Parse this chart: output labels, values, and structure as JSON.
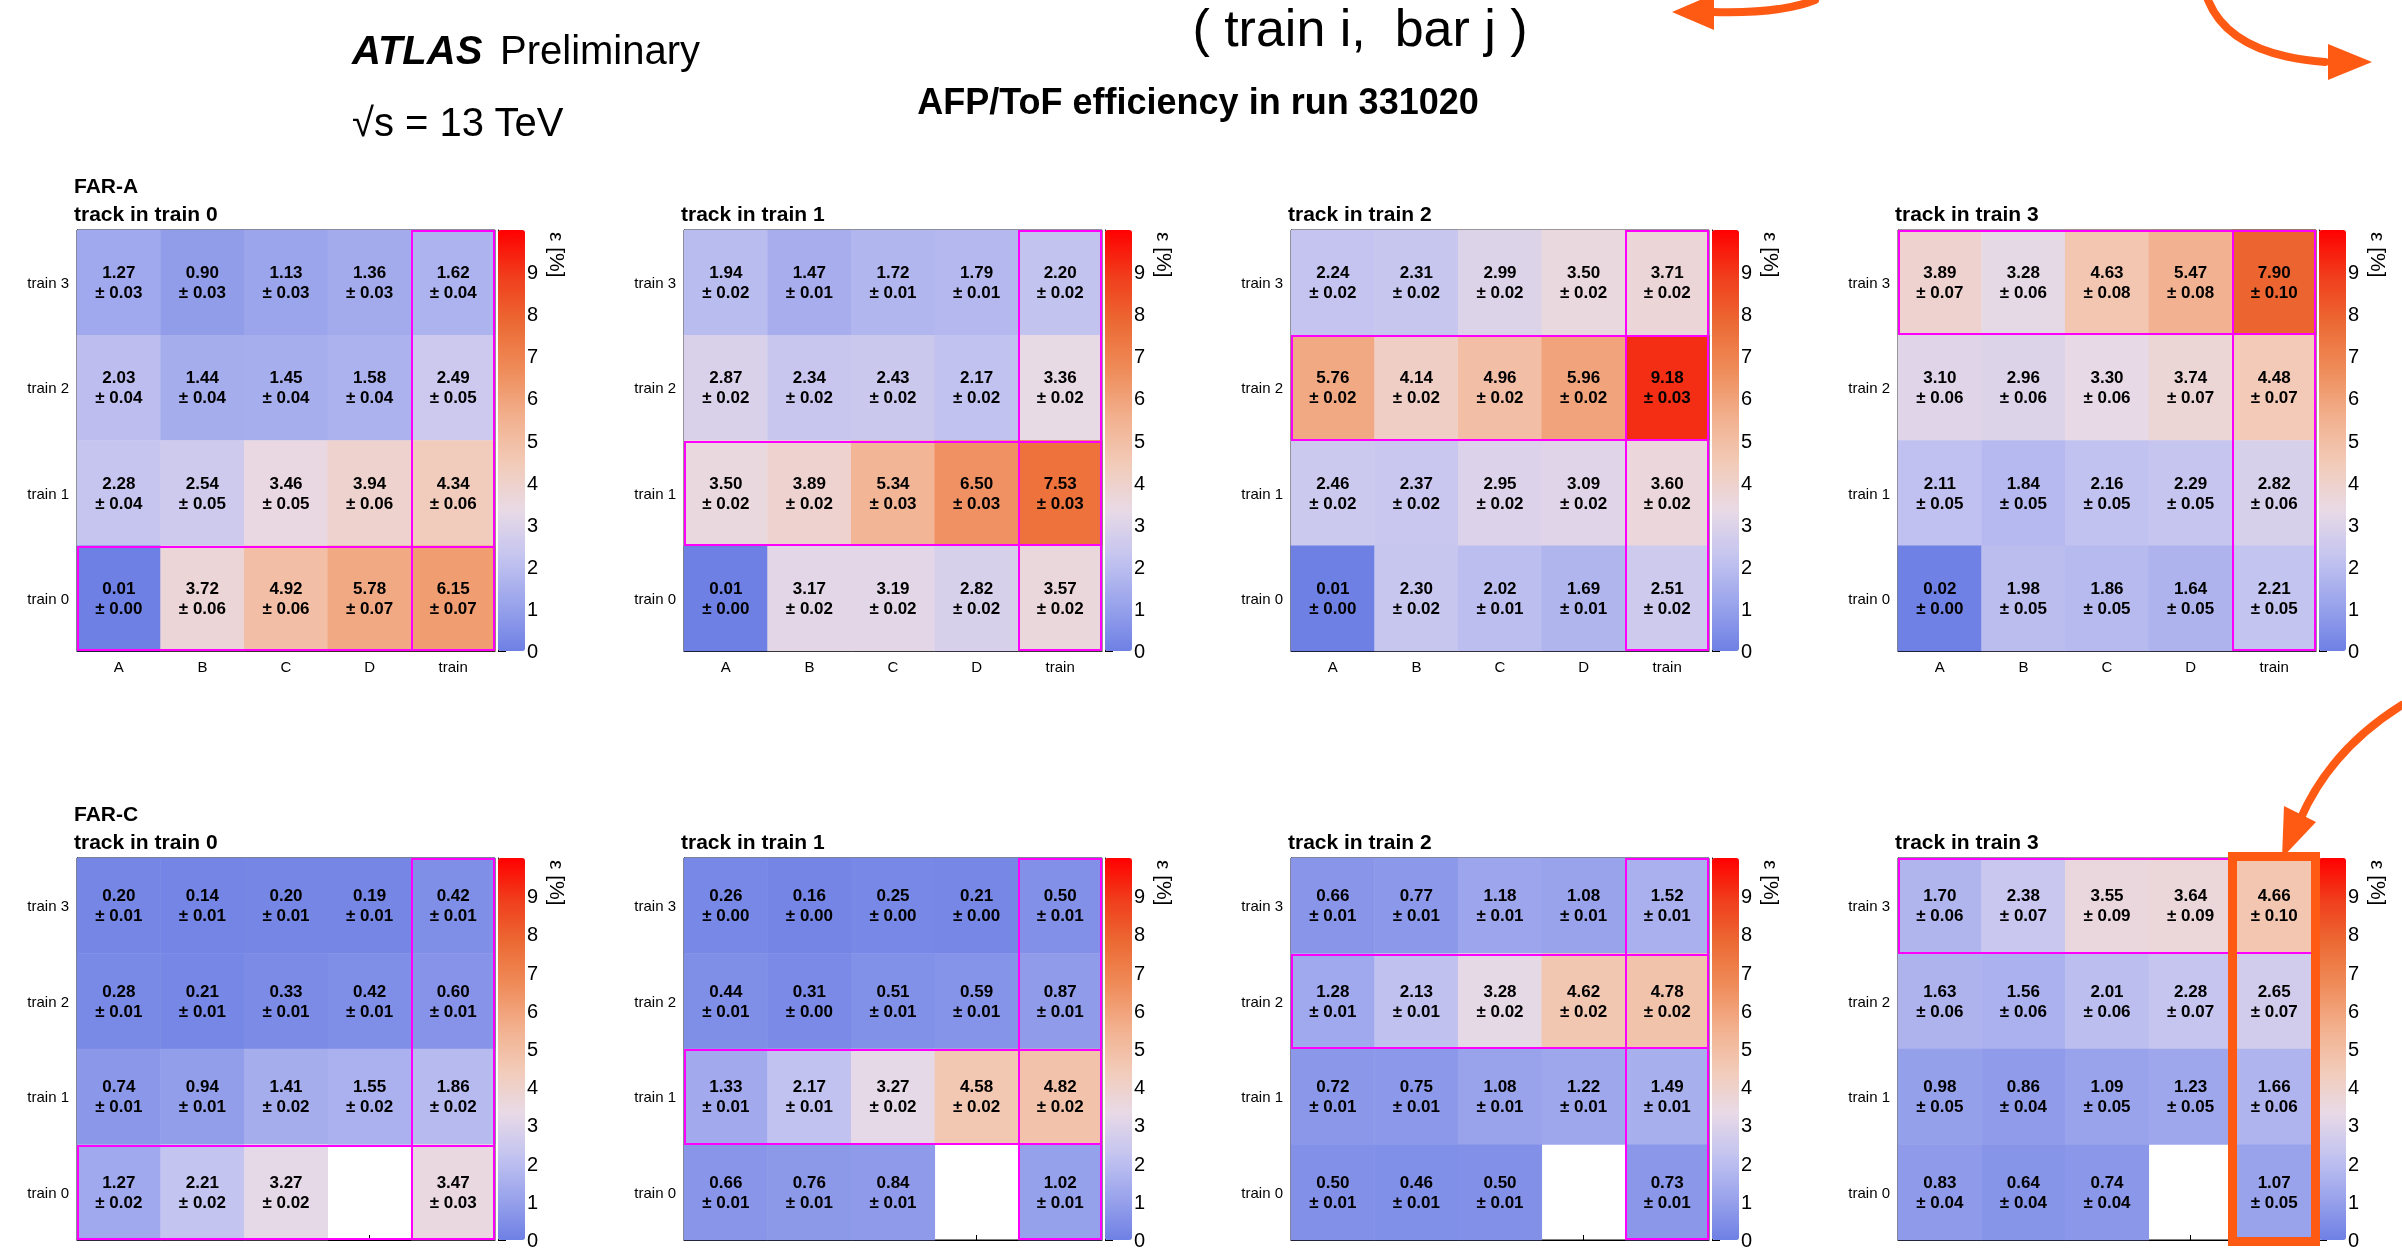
{
  "chart_data": [
    {
      "type": "heatmap",
      "title": "track in train 0",
      "annotations": [
        "ATLAS",
        "Preliminary",
        "√s = 13 TeV",
        "AFP/ToF efficiency in run 331020",
        "( train i,  bar j )",
        "FAR-A"
      ],
      "categories": [
        "A",
        "B",
        "C",
        "D",
        "train"
      ],
      "y_categories": [
        "train 3",
        "train 2",
        "train 1",
        "train 0"
      ],
      "clabel": "ε [%]",
      "clim": [
        0,
        10
      ],
      "cticks": [
        0,
        1,
        2,
        3,
        4,
        5,
        6,
        7,
        8,
        9
      ],
      "cells": [
        [
          1.27,
          0.9,
          1.13,
          1.36,
          1.62
        ],
        [
          2.03,
          1.44,
          1.45,
          1.58,
          2.49
        ],
        [
          2.28,
          2.54,
          3.46,
          3.94,
          4.34
        ],
        [
          0.01,
          3.72,
          4.92,
          5.78,
          6.15
        ]
      ],
      "cell_labels": [
        [
          "1.27\n± 0.03",
          "0.90\n± 0.03",
          "1.13\n± 0.03",
          "1.36\n± 0.03",
          "1.62\n± 0.04"
        ],
        [
          "2.03\n± 0.04",
          "1.44\n± 0.04",
          "1.45\n± 0.04",
          "1.58\n± 0.04",
          "2.49\n± 0.05"
        ],
        [
          "2.28\n± 0.04",
          "2.54\n± 0.05",
          "3.46\n± 0.05",
          "3.94\n± 0.06",
          "4.34\n± 0.06"
        ],
        [
          "0.01\n± 0.00",
          "3.72\n± 0.06",
          "4.92\n± 0.06",
          "5.78\n± 0.07",
          "6.15\n± 0.07"
        ]
      ]
    },
    {
      "type": "heatmap",
      "title": "track in train 1",
      "categories": [
        "A",
        "B",
        "C",
        "D",
        "train"
      ],
      "y_categories": [
        "train 3",
        "train 2",
        "train 1",
        "train 0"
      ],
      "clabel": "ε [%]",
      "clim": [
        0,
        10
      ],
      "cticks": [
        0,
        1,
        2,
        3,
        4,
        5,
        6,
        7,
        8,
        9
      ],
      "cells": [
        [
          1.94,
          1.47,
          1.72,
          1.79,
          2.2
        ],
        [
          2.87,
          2.34,
          2.43,
          2.17,
          3.36
        ],
        [
          3.5,
          3.89,
          5.34,
          6.5,
          7.53
        ],
        [
          0.01,
          3.17,
          3.19,
          2.82,
          3.57
        ]
      ],
      "cell_labels": [
        [
          "1.94\n± 0.02",
          "1.47\n± 0.01",
          "1.72\n± 0.01",
          "1.79\n± 0.01",
          "2.20\n± 0.02"
        ],
        [
          "2.87\n± 0.02",
          "2.34\n± 0.02",
          "2.43\n± 0.02",
          "2.17\n± 0.02",
          "3.36\n± 0.02"
        ],
        [
          "3.50\n± 0.02",
          "3.89\n± 0.02",
          "5.34\n± 0.03",
          "6.50\n± 0.03",
          "7.53\n± 0.03"
        ],
        [
          "0.01\n± 0.00",
          "3.17\n± 0.02",
          "3.19\n± 0.02",
          "2.82\n± 0.02",
          "3.57\n± 0.02"
        ]
      ]
    },
    {
      "type": "heatmap",
      "title": "track in train 2",
      "categories": [
        "A",
        "B",
        "C",
        "D",
        "train"
      ],
      "y_categories": [
        "train 3",
        "train 2",
        "train 1",
        "train 0"
      ],
      "clabel": "ε [%]",
      "clim": [
        0,
        10
      ],
      "cticks": [
        0,
        1,
        2,
        3,
        4,
        5,
        6,
        7,
        8,
        9
      ],
      "cells": [
        [
          2.24,
          2.31,
          2.99,
          3.5,
          3.71
        ],
        [
          5.76,
          4.14,
          4.96,
          5.96,
          9.18
        ],
        [
          2.46,
          2.37,
          2.95,
          3.09,
          3.6
        ],
        [
          0.01,
          2.3,
          2.02,
          1.69,
          2.51
        ]
      ],
      "cell_labels": [
        [
          "2.24\n± 0.02",
          "2.31\n± 0.02",
          "2.99\n± 0.02",
          "3.50\n± 0.02",
          "3.71\n± 0.02"
        ],
        [
          "5.76\n± 0.02",
          "4.14\n± 0.02",
          "4.96\n± 0.02",
          "5.96\n± 0.02",
          "9.18\n± 0.03"
        ],
        [
          "2.46\n± 0.02",
          "2.37\n± 0.02",
          "2.95\n± 0.02",
          "3.09\n± 0.02",
          "3.60\n± 0.02"
        ],
        [
          "0.01\n± 0.00",
          "2.30\n± 0.02",
          "2.02\n± 0.01",
          "1.69\n± 0.01",
          "2.51\n± 0.02"
        ]
      ]
    },
    {
      "type": "heatmap",
      "title": "track in train 3",
      "categories": [
        "A",
        "B",
        "C",
        "D",
        "train"
      ],
      "y_categories": [
        "train 3",
        "train 2",
        "train 1",
        "train 0"
      ],
      "clabel": "ε [%]",
      "clim": [
        0,
        10
      ],
      "cticks": [
        0,
        1,
        2,
        3,
        4,
        5,
        6,
        7,
        8,
        9
      ],
      "cells": [
        [
          3.89,
          3.28,
          4.63,
          5.47,
          7.9
        ],
        [
          3.1,
          2.96,
          3.3,
          3.74,
          4.48
        ],
        [
          2.11,
          1.84,
          2.16,
          2.29,
          2.82
        ],
        [
          0.02,
          1.98,
          1.86,
          1.64,
          2.21
        ]
      ],
      "cell_labels": [
        [
          "3.89\n± 0.07",
          "3.28\n± 0.06",
          "4.63\n± 0.08",
          "5.47\n± 0.08",
          "7.90\n± 0.10"
        ],
        [
          "3.10\n± 0.06",
          "2.96\n± 0.06",
          "3.30\n± 0.06",
          "3.74\n± 0.07",
          "4.48\n± 0.07"
        ],
        [
          "2.11\n± 0.05",
          "1.84\n± 0.05",
          "2.16\n± 0.05",
          "2.29\n± 0.05",
          "2.82\n± 0.06"
        ],
        [
          "0.02\n± 0.00",
          "1.98\n± 0.05",
          "1.86\n± 0.05",
          "1.64\n± 0.05",
          "2.21\n± 0.05"
        ]
      ]
    },
    {
      "type": "heatmap",
      "title": "track in train 0",
      "annotations": [
        "FAR-C"
      ],
      "categories": [
        null,
        null,
        null,
        null,
        null
      ],
      "y_categories": [
        "train 3",
        "train 2",
        "train 1",
        "train 0"
      ],
      "clabel": "ε [%]",
      "clim": [
        0,
        10
      ],
      "cticks": [
        0,
        1,
        2,
        3,
        4,
        5,
        6,
        7,
        8,
        9
      ],
      "cells": [
        [
          0.2,
          0.14,
          0.2,
          0.19,
          0.42
        ],
        [
          0.28,
          0.21,
          0.33,
          0.42,
          0.6
        ],
        [
          0.74,
          0.94,
          1.41,
          1.55,
          1.86
        ],
        [
          1.27,
          2.21,
          3.27,
          null,
          3.47
        ]
      ],
      "cell_labels": [
        [
          "0.20\n± 0.01",
          "0.14\n± 0.01",
          "0.20\n± 0.01",
          "0.19\n± 0.01",
          "0.42\n± 0.01"
        ],
        [
          "0.28\n± 0.01",
          "0.21\n± 0.01",
          "0.33\n± 0.01",
          "0.42\n± 0.01",
          "0.60\n± 0.01"
        ],
        [
          "0.74\n± 0.01",
          "0.94\n± 0.01",
          "1.41\n± 0.02",
          "1.55\n± 0.02",
          "1.86\n± 0.02"
        ],
        [
          "1.27\n± 0.02",
          "2.21\n± 0.02",
          "3.27\n± 0.02",
          null,
          "3.47\n± 0.03"
        ]
      ]
    },
    {
      "type": "heatmap",
      "title": "track in train 1",
      "categories": [
        null,
        null,
        null,
        null,
        null
      ],
      "y_categories": [
        "train 3",
        "train 2",
        "train 1",
        "train 0"
      ],
      "clabel": "ε [%]",
      "clim": [
        0,
        10
      ],
      "cticks": [
        0,
        1,
        2,
        3,
        4,
        5,
        6,
        7,
        8,
        9
      ],
      "cells": [
        [
          0.26,
          0.16,
          0.25,
          0.21,
          0.5
        ],
        [
          0.44,
          0.31,
          0.51,
          0.59,
          0.87
        ],
        [
          1.33,
          2.17,
          3.27,
          4.58,
          4.82
        ],
        [
          0.66,
          0.76,
          0.84,
          null,
          1.02
        ]
      ],
      "cell_labels": [
        [
          "0.26\n± 0.00",
          "0.16\n± 0.00",
          "0.25\n± 0.00",
          "0.21\n± 0.00",
          "0.50\n± 0.01"
        ],
        [
          "0.44\n± 0.01",
          "0.31\n± 0.00",
          "0.51\n± 0.01",
          "0.59\n± 0.01",
          "0.87\n± 0.01"
        ],
        [
          "1.33\n± 0.01",
          "2.17\n± 0.01",
          "3.27\n± 0.02",
          "4.58\n± 0.02",
          "4.82\n± 0.02"
        ],
        [
          "0.66\n± 0.01",
          "0.76\n± 0.01",
          "0.84\n± 0.01",
          null,
          "1.02\n± 0.01"
        ]
      ]
    },
    {
      "type": "heatmap",
      "title": "track in train 2",
      "categories": [
        null,
        null,
        null,
        null,
        null
      ],
      "y_categories": [
        "train 3",
        "train 2",
        "train 1",
        "train 0"
      ],
      "clabel": "ε [%]",
      "clim": [
        0,
        10
      ],
      "cticks": [
        0,
        1,
        2,
        3,
        4,
        5,
        6,
        7,
        8,
        9
      ],
      "cells": [
        [
          0.66,
          0.77,
          1.18,
          1.08,
          1.52
        ],
        [
          1.28,
          2.13,
          3.28,
          4.62,
          4.78
        ],
        [
          0.72,
          0.75,
          1.08,
          1.22,
          1.49
        ],
        [
          0.5,
          0.46,
          0.5,
          null,
          0.73
        ]
      ],
      "cell_labels": [
        [
          "0.66\n± 0.01",
          "0.77\n± 0.01",
          "1.18\n± 0.01",
          "1.08\n± 0.01",
          "1.52\n± 0.01"
        ],
        [
          "1.28\n± 0.01",
          "2.13\n± 0.01",
          "3.28\n± 0.02",
          "4.62\n± 0.02",
          "4.78\n± 0.02"
        ],
        [
          "0.72\n± 0.01",
          "0.75\n± 0.01",
          "1.08\n± 0.01",
          "1.22\n± 0.01",
          "1.49\n± 0.01"
        ],
        [
          "0.50\n± 0.01",
          "0.46\n± 0.01",
          "0.50\n± 0.01",
          null,
          "0.73\n± 0.01"
        ]
      ]
    },
    {
      "type": "heatmap",
      "title": "track in train 3",
      "categories": [
        null,
        null,
        null,
        null,
        null
      ],
      "y_categories": [
        "train 3",
        "train 2",
        "train 1",
        "train 0"
      ],
      "clabel": "ε [%]",
      "clim": [
        0,
        10
      ],
      "cticks": [
        0,
        1,
        2,
        3,
        4,
        5,
        6,
        7,
        8,
        9
      ],
      "cells": [
        [
          1.7,
          2.38,
          3.55,
          3.64,
          4.66
        ],
        [
          1.63,
          1.56,
          2.01,
          2.28,
          2.65
        ],
        [
          0.98,
          0.86,
          1.09,
          1.23,
          1.66
        ],
        [
          0.83,
          0.64,
          0.74,
          null,
          1.07
        ]
      ],
      "cell_labels": [
        [
          "1.70\n± 0.06",
          "2.38\n± 0.07",
          "3.55\n± 0.09",
          "3.64\n± 0.09",
          "4.66\n± 0.10"
        ],
        [
          "1.63\n± 0.06",
          "1.56\n± 0.06",
          "2.01\n± 0.06",
          "2.28\n± 0.07",
          "2.65\n± 0.07"
        ],
        [
          "0.98\n± 0.05",
          "0.86\n± 0.04",
          "1.09\n± 0.05",
          "1.23\n± 0.05",
          "1.66\n± 0.06"
        ],
        [
          "0.83\n± 0.04",
          "0.64\n± 0.04",
          "0.74\n± 0.04",
          null,
          "1.07\n± 0.05"
        ]
      ]
    }
  ]
}
